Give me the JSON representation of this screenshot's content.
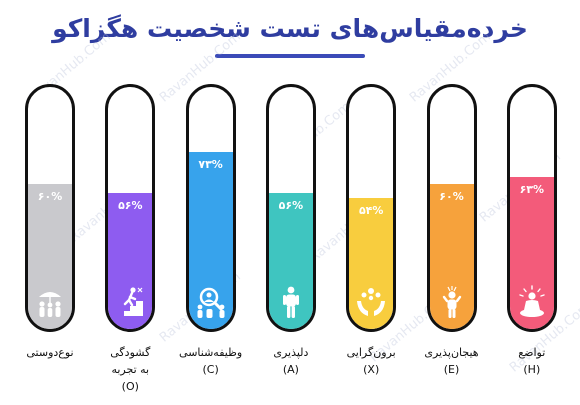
{
  "title": "خرده‌مقیاس‌های تست شخصیت هگزاکو",
  "watermark_text": "RavanHub.Com",
  "colors": {
    "title": "#2f3da0",
    "tube_border": "#111111"
  },
  "chart_data": {
    "type": "bar",
    "title": "خرده‌مقیاس‌های تست شخصیت هگزاکو",
    "ylim": [
      0,
      100
    ],
    "bars": [
      {
        "label": "نوع‌دوستی",
        "value": 60,
        "value_label": "۶۰%",
        "color": "#c9c9cd",
        "icon": "people-umbrella-icon"
      },
      {
        "label": "گشودگی\nبه تجربه\n(O)",
        "value": 56,
        "value_label": "۵۶%",
        "color": "#8e5cf0",
        "icon": "person-climbing-stairs-icon"
      },
      {
        "label": "وظیفه‌شناسی\n(C)",
        "value": 73,
        "value_label": "۷۳%",
        "color": "#37a3ec",
        "icon": "team-magnifier-icon"
      },
      {
        "label": "دلپذیری\n(A)",
        "value": 56,
        "value_label": "۵۶%",
        "color": "#3fc5c0",
        "icon": "standing-person-icon"
      },
      {
        "label": "برون‌گرایی\n(X)",
        "value": 54,
        "value_label": "۵۴%",
        "color": "#f8cd3e",
        "icon": "hands-sharing-icon"
      },
      {
        "label": "هیجان‌پذیری\n(E)",
        "value": 60,
        "value_label": "۶۰%",
        "color": "#f6a23c",
        "icon": "stressed-person-icon"
      },
      {
        "label": "تواضع\n(H)",
        "value": 63,
        "value_label": "۶۳%",
        "color": "#f35b7a",
        "icon": "meditating-person-icon"
      }
    ]
  }
}
